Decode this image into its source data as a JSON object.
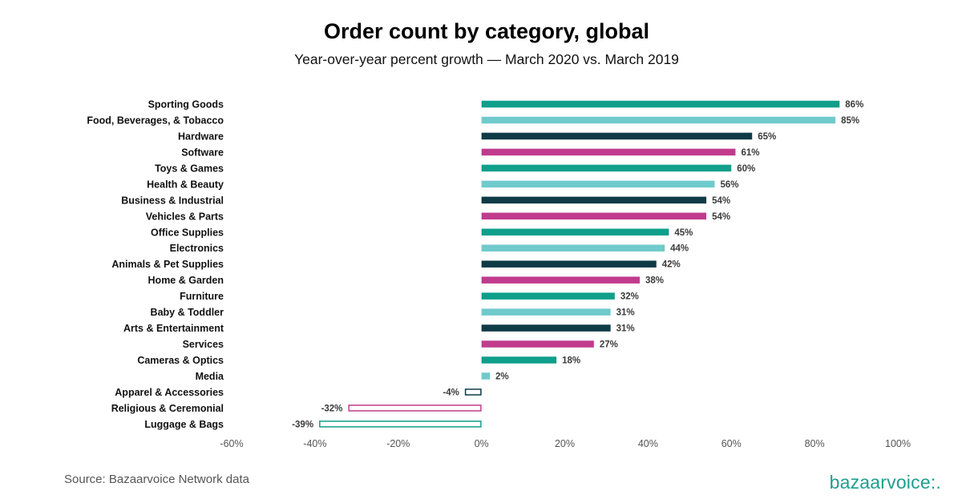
{
  "chart_data": {
    "type": "bar",
    "orientation": "horizontal",
    "title": "Order count by category, global",
    "subtitle": "Year-over-year percent growth — March 2020 vs. March 2019",
    "xlim": [
      -60,
      100
    ],
    "xticks": [
      -60,
      -40,
      -20,
      0,
      20,
      40,
      60,
      80,
      100
    ],
    "xtick_labels": [
      "-60%",
      "-40%",
      "-20%",
      "0%",
      "20%",
      "40%",
      "60%",
      "80%",
      "100%"
    ],
    "grid": false,
    "value_suffix": "%",
    "color_cycle": [
      "#0f9f8a",
      "#6fcacb",
      "#0e3b45",
      "#c13b8d"
    ],
    "negative_style": "outlined",
    "categories": [
      "Sporting Goods",
      "Food, Beverages, & Tobacco",
      "Hardware",
      "Software",
      "Toys & Games",
      "Health & Beauty",
      "Business & Industrial",
      "Vehicles & Parts",
      "Office Supplies",
      "Electronics",
      "Animals & Pet Supplies",
      "Home & Garden",
      "Furniture",
      "Baby & Toddler",
      "Arts & Entertainment",
      "Services",
      "Cameras & Optics",
      "Media",
      "Apparel & Accessories",
      "Religious & Ceremonial",
      "Luggage & Bags"
    ],
    "values": [
      86,
      85,
      65,
      61,
      60,
      56,
      54,
      54,
      45,
      44,
      42,
      38,
      32,
      31,
      31,
      27,
      18,
      2,
      -4,
      -32,
      -39
    ],
    "value_labels": [
      "86%",
      "85%",
      "65%",
      "61%",
      "60%",
      "56%",
      "54%",
      "54%",
      "45%",
      "44%",
      "42%",
      "38%",
      "32%",
      "31%",
      "31%",
      "27%",
      "18%",
      "2%",
      "-4%",
      "-32%",
      "-39%"
    ]
  },
  "footer": {
    "source": "Source: Bazaarvoice Network data",
    "brand_text": "bazaarvoice",
    "brand_mark": ":."
  }
}
